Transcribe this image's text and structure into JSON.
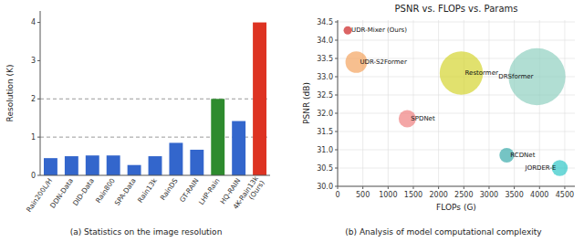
{
  "chart_data": [
    {
      "type": "bar",
      "categories": [
        "Rain200L/H",
        "DDN-Data",
        "DID-Data",
        "Rain800",
        "SPA-Data",
        "Rain13k",
        "RainDS",
        "GT-RAIN",
        "LHP-Rain",
        "HQ-RAIN",
        "4K-Rain13k\n(Ours)"
      ],
      "values": [
        0.45,
        0.5,
        0.52,
        0.52,
        0.27,
        0.5,
        0.85,
        0.67,
        2.0,
        1.42,
        4.0
      ],
      "colors": [
        "#3366cc",
        "#3366cc",
        "#3366cc",
        "#3366cc",
        "#3366cc",
        "#3366cc",
        "#3366cc",
        "#3366cc",
        "#2e8b2e",
        "#3366cc",
        "#dd3322"
      ],
      "ylabel": "Resolution (K)",
      "ylim": [
        0,
        4.3
      ],
      "yticks": [
        0,
        1,
        2,
        3,
        4
      ],
      "hlines": [
        1.0,
        2.0
      ],
      "grid": false,
      "caption": "(a) Statistics on the image resolution"
    },
    {
      "type": "scatter",
      "title": "PSNR vs. FLOPs vs. Params",
      "xlabel": "FLOPs (G)",
      "ylabel": "PSNR (dB)",
      "labels": [
        "UDR-Mixer (Ours)",
        "UDR-S2Former",
        "SPDNet",
        "Restormer",
        "DRSformer",
        "RCDNet",
        "JORDER-E"
      ],
      "x": [
        200,
        370,
        1380,
        2450,
        3950,
        3350,
        4400
      ],
      "values": [
        34.27,
        33.4,
        31.85,
        33.1,
        33.0,
        30.85,
        30.5
      ],
      "sizes": [
        8,
        55,
        35,
        220,
        380,
        25,
        30
      ],
      "colors": [
        "#cc2222",
        "#f4a460",
        "#f08080",
        "#d4d430",
        "#90d0c0",
        "#3aabab",
        "#30c8c8"
      ],
      "xlim": [
        0,
        4700
      ],
      "ylim": [
        30.0,
        34.55
      ],
      "xticks": [
        0,
        500,
        1000,
        1500,
        2000,
        2500,
        3000,
        3500,
        4000,
        4500
      ],
      "yticks": [
        {
          "value": 30.0,
          "label": "30.0"
        },
        30.5,
        {
          "value": 31.0,
          "label": "31.0"
        },
        31.5,
        {
          "value": 32.0,
          "label": "32.0"
        },
        32.5,
        {
          "value": 33.0,
          "label": "33.0"
        },
        33.5,
        {
          "value": 34.0,
          "label": "34.0"
        },
        34.5
      ],
      "grid": true,
      "caption": "(b) Analysis of model computational complexity"
    }
  ]
}
